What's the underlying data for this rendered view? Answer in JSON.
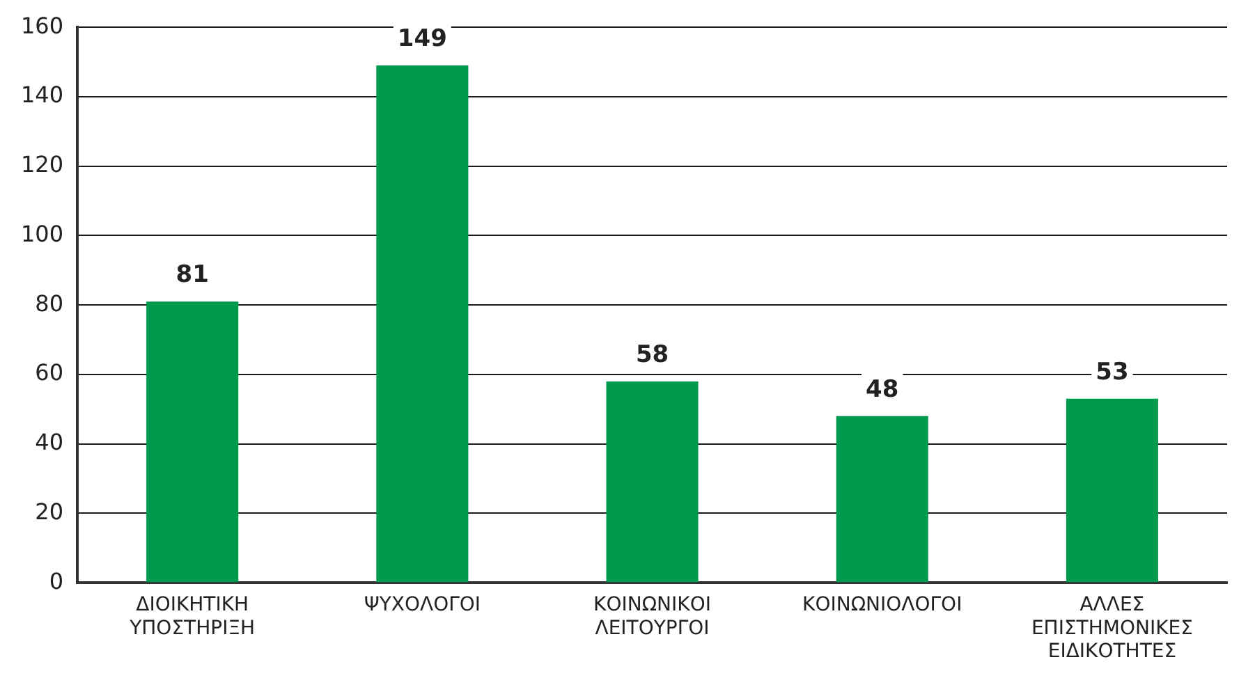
{
  "chart_data": {
    "type": "bar",
    "categories": [
      "ΔΙΟΙΚΗΤΙΚΗ ΥΠΟΣΤΗΡΙΞΗ",
      "ΨΥΧΟΛΟΓΟΙ",
      "ΚΟΙΝΩΝΙΚΟΙ ΛΕΙΤΟΥΡΓΟΙ",
      "ΚΟΙΝΩΝΙΟΛΟΓΟΙ",
      "ΑΛΛΕΣ ΕΠΙΣΤΗΜΟΝΙΚΕΣ ΕΙΔΙΚΟΤΗΤΕΣ"
    ],
    "values": [
      81,
      149,
      58,
      48,
      53
    ],
    "color": "#009a4e",
    "ylim": [
      0,
      160
    ],
    "yticks": [
      0,
      20,
      40,
      60,
      80,
      100,
      120,
      140,
      160
    ],
    "grid": "y",
    "data_labels": true
  }
}
